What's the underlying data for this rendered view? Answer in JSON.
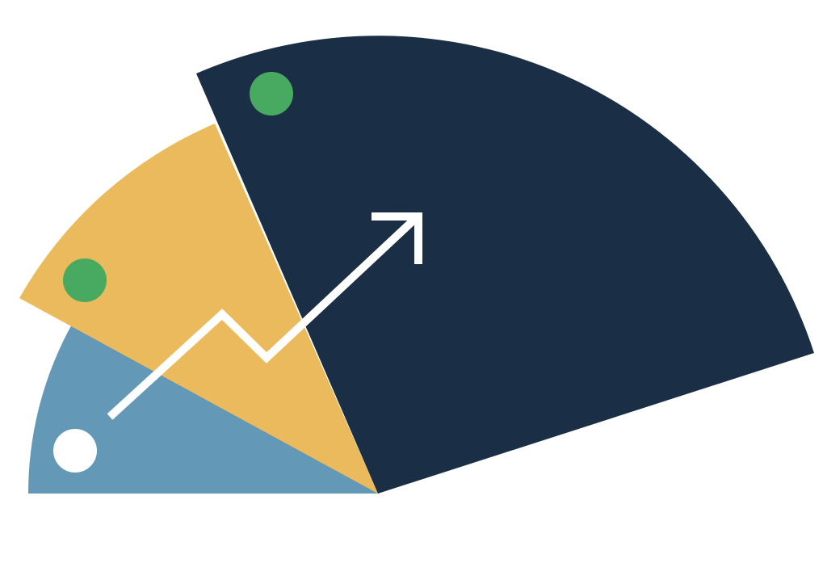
{
  "graphic": {
    "sectors": [
      {
        "name": "small-sector",
        "color": "#6399b7"
      },
      {
        "name": "medium-sector",
        "color": "#ebba5c"
      },
      {
        "name": "large-sector",
        "color": "#1a2f45"
      }
    ],
    "markers": [
      {
        "name": "small-sector-dot",
        "color": "#ffffff"
      },
      {
        "name": "medium-sector-dot",
        "color": "#47aa60"
      },
      {
        "name": "large-sector-dot",
        "color": "#47aa60"
      }
    ],
    "trend_arrow": {
      "icon": "growth-arrow-icon",
      "color": "#ffffff"
    }
  }
}
